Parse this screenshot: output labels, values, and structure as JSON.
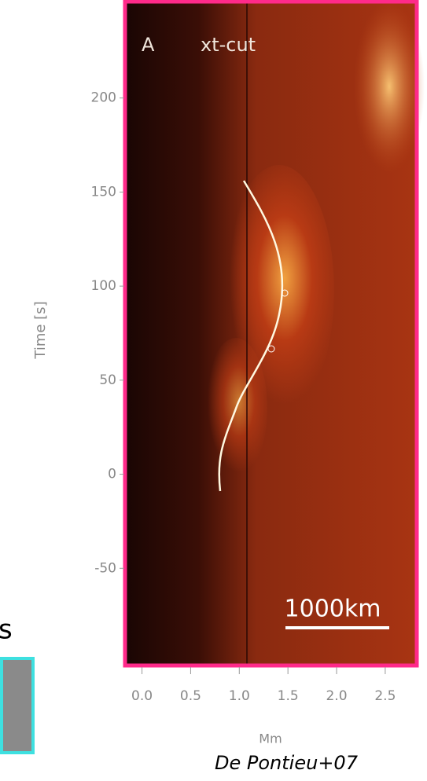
{
  "chart_data": {
    "type": "heatmap",
    "panel_label": "A",
    "title": "xt-cut",
    "y_label": "Time [s]",
    "x_label": "Mm",
    "ylim": [
      -100,
      250
    ],
    "yticks": [
      -50,
      0,
      50,
      100,
      150,
      200
    ],
    "xlim": [
      -0.15,
      2.8
    ],
    "xticks": [
      {
        "value": 0,
        "label": "0.0"
      },
      {
        "value": 0.5,
        "label": "0.5"
      },
      {
        "value": 1,
        "label": "1.0"
      },
      {
        "value": 1.5,
        "label": "1.5"
      },
      {
        "value": 2,
        "label": "2.0"
      },
      {
        "value": 2.5,
        "label": "2.5"
      }
    ],
    "scale_bar": "1000km",
    "credit": "De Pontieu+07",
    "frame_color": "#ff2a8a"
  },
  "side_text": "s"
}
